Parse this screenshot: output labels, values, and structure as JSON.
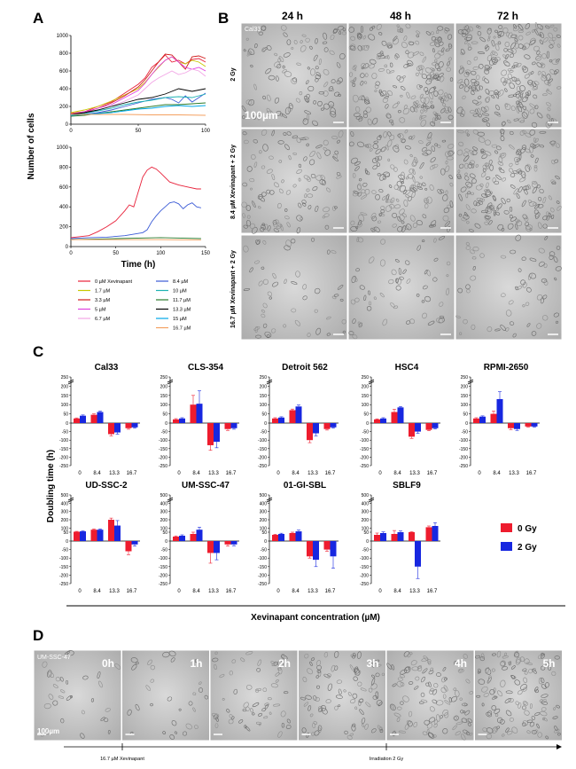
{
  "panels": {
    "A": "A",
    "B": "B",
    "C": "C",
    "D": "D"
  },
  "panelA": {
    "ylabel": "Number of cells",
    "xlabel": "Time (h)",
    "legend": [
      "0 µM Xevinapant",
      "1.7 µM",
      "3.3 µM",
      "5 µM",
      "6.7 µM",
      "8.4 µM",
      "10 µM",
      "11.7 µM",
      "13.3 µM",
      "15 µM",
      "16.7 µM"
    ],
    "colors": [
      "#e8213a",
      "#c8c800",
      "#d01a1a",
      "#e040e0",
      "#f2a6e6",
      "#3b5bd6",
      "#1fb3b3",
      "#2a7a2a",
      "#000000",
      "#00a8e8",
      "#f4a060"
    ]
  },
  "panelB": {
    "times": [
      "24 h",
      "48 h",
      "72 h"
    ],
    "rows": [
      "2 Gy",
      "8.4 µM Xevinapant + 2 Gy",
      "16.7 µM Xevinapant + 2 Gy"
    ],
    "cellline": "Cal33",
    "scale": "100µm"
  },
  "panelC": {
    "ylabel": "Doubling time (h)",
    "xlabel": "Xevinapant concentration (µM)",
    "legend": [
      "0 Gy",
      "2 Gy"
    ],
    "colors": {
      "gy0": "#ee1c2e",
      "gy2": "#1727e0"
    }
  },
  "panelD": {
    "cellline": "UM-SSC-47",
    "scale": "100µm",
    "frames": [
      "0h",
      "1h",
      "2h",
      "3h",
      "4h",
      "5h"
    ],
    "timeline": [
      "16.7 µM Xevinapant",
      "Irradiation 2 Gy"
    ]
  },
  "chart_data": [
    {
      "type": "line",
      "title": "",
      "xlabel": "Time (h)",
      "ylabel": "Number of cells",
      "xlim": [
        0,
        100
      ],
      "ylim": [
        0,
        1000
      ],
      "xticks": [
        0,
        50,
        100
      ],
      "yticks": [
        0,
        200,
        400,
        600,
        800,
        1000
      ],
      "series": [
        {
          "name": "0 µM Xevinapant",
          "x": [
            0,
            10,
            20,
            30,
            40,
            50,
            55,
            60,
            65,
            70,
            75,
            80,
            85,
            90,
            95,
            100
          ],
          "y": [
            120,
            140,
            200,
            250,
            350,
            450,
            520,
            640,
            700,
            780,
            700,
            720,
            680,
            730,
            740,
            700
          ]
        },
        {
          "name": "1.7 µM",
          "x": [
            0,
            10,
            20,
            30,
            40,
            50,
            55,
            60,
            65,
            70,
            75,
            80,
            85,
            90,
            95,
            100
          ],
          "y": [
            130,
            160,
            200,
            260,
            330,
            400,
            470,
            560,
            640,
            720,
            760,
            700,
            680,
            720,
            700,
            650
          ]
        },
        {
          "name": "3.3 µM",
          "x": [
            0,
            10,
            20,
            30,
            40,
            50,
            55,
            60,
            65,
            70,
            75,
            80,
            85,
            90,
            95,
            100
          ],
          "y": [
            100,
            130,
            180,
            240,
            320,
            420,
            500,
            600,
            700,
            790,
            780,
            700,
            620,
            760,
            770,
            740
          ]
        },
        {
          "name": "5 µM",
          "x": [
            0,
            10,
            20,
            30,
            40,
            50,
            55,
            60,
            65,
            70,
            75,
            80,
            85,
            90,
            95,
            100
          ],
          "y": [
            110,
            140,
            180,
            220,
            300,
            380,
            460,
            560,
            650,
            720,
            760,
            700,
            640,
            620,
            640,
            600
          ]
        },
        {
          "name": "6.7 µM",
          "x": [
            0,
            10,
            20,
            30,
            40,
            50,
            55,
            60,
            65,
            70,
            75,
            80,
            85,
            90,
            95,
            100
          ],
          "y": [
            100,
            120,
            160,
            200,
            260,
            330,
            400,
            470,
            520,
            560,
            600,
            560,
            580,
            620,
            600,
            540
          ]
        },
        {
          "name": "8.4 µM",
          "x": [
            0,
            10,
            20,
            30,
            40,
            50,
            60,
            70,
            75,
            80,
            85,
            90,
            95,
            100
          ],
          "y": [
            100,
            110,
            130,
            160,
            200,
            240,
            280,
            300,
            280,
            240,
            320,
            250,
            300,
            350
          ]
        },
        {
          "name": "10 µM",
          "x": [
            0,
            10,
            20,
            30,
            40,
            50,
            60,
            70,
            80,
            90,
            100
          ],
          "y": [
            100,
            120,
            150,
            180,
            220,
            250,
            270,
            300,
            310,
            300,
            340
          ]
        },
        {
          "name": "11.7 µM",
          "x": [
            0,
            10,
            20,
            30,
            40,
            50,
            60,
            70,
            80,
            90,
            100
          ],
          "y": [
            90,
            100,
            120,
            140,
            160,
            180,
            200,
            220,
            220,
            230,
            240
          ]
        },
        {
          "name": "13.3 µM",
          "x": [
            0,
            10,
            20,
            30,
            40,
            50,
            60,
            70,
            80,
            90,
            100
          ],
          "y": [
            110,
            130,
            160,
            200,
            240,
            280,
            300,
            340,
            400,
            370,
            400
          ]
        },
        {
          "name": "15 µM",
          "x": [
            0,
            10,
            20,
            30,
            40,
            50,
            60,
            70,
            80,
            90,
            100
          ],
          "y": [
            100,
            110,
            120,
            130,
            150,
            170,
            180,
            200,
            210,
            200,
            210
          ]
        },
        {
          "name": "16.7 µM",
          "x": [
            0,
            20,
            40,
            60,
            80,
            100
          ],
          "y": [
            110,
            110,
            110,
            105,
            105,
            100
          ]
        }
      ]
    },
    {
      "type": "line",
      "title": "",
      "xlabel": "Time (h)",
      "ylabel": "Number of cells",
      "xlim": [
        0,
        150
      ],
      "ylim": [
        0,
        1000
      ],
      "xticks": [
        0,
        50,
        100,
        150
      ],
      "yticks": [
        0,
        200,
        400,
        600,
        800,
        1000
      ],
      "series": [
        {
          "name": "0 µM Xevinapant",
          "x": [
            0,
            10,
            20,
            30,
            40,
            50,
            60,
            65,
            70,
            75,
            80,
            85,
            90,
            95,
            100,
            110,
            120,
            130,
            140,
            145
          ],
          "y": [
            90,
            100,
            110,
            150,
            200,
            260,
            360,
            420,
            400,
            550,
            700,
            770,
            800,
            780,
            740,
            650,
            620,
            600,
            580,
            580
          ]
        },
        {
          "name": "8.4 µM",
          "x": [
            0,
            20,
            40,
            60,
            80,
            85,
            90,
            95,
            100,
            105,
            110,
            115,
            120,
            125,
            130,
            135,
            140,
            145
          ],
          "y": [
            80,
            90,
            95,
            110,
            140,
            170,
            250,
            310,
            360,
            400,
            440,
            450,
            430,
            380,
            420,
            440,
            400,
            390
          ]
        },
        {
          "name": "11.7 µM",
          "x": [
            0,
            50,
            100,
            145
          ],
          "y": [
            70,
            80,
            90,
            80
          ]
        },
        {
          "name": "16.7 µM",
          "x": [
            0,
            50,
            100,
            145
          ],
          "y": [
            70,
            70,
            70,
            65
          ]
        }
      ]
    },
    {
      "type": "bar",
      "title": "Cal33",
      "categories": [
        "0",
        "8.4",
        "13.3",
        "16.7"
      ],
      "yticks": [
        "250",
        "200",
        "150",
        "100",
        "50",
        "0",
        "-50",
        "-100",
        "-150",
        "-200",
        "-250"
      ],
      "ylim": [
        -250,
        250
      ],
      "series": [
        {
          "name": "0 Gy",
          "values": [
            25,
            45,
            -65,
            -30
          ],
          "errors": [
            3,
            5,
            10,
            6
          ]
        },
        {
          "name": "2 Gy",
          "values": [
            40,
            60,
            -55,
            -25
          ],
          "errors": [
            4,
            5,
            10,
            5
          ]
        }
      ]
    },
    {
      "type": "bar",
      "title": "CLS-354",
      "categories": [
        "0",
        "8.4",
        "13.3",
        "16.7"
      ],
      "yticks": [
        "250",
        "200",
        "150",
        "100",
        "50",
        "0",
        "-50",
        "-100",
        "-150",
        "-200",
        "-250"
      ],
      "ylim": [
        -250,
        250
      ],
      "series": [
        {
          "name": "0 Gy",
          "values": [
            20,
            100,
            -130,
            -35
          ],
          "errors": [
            4,
            50,
            30,
            8
          ]
        },
        {
          "name": "2 Gy",
          "values": [
            25,
            105,
            -110,
            -30
          ],
          "errors": [
            4,
            70,
            35,
            6
          ]
        }
      ]
    },
    {
      "type": "bar",
      "title": "Detroit 562",
      "categories": [
        "0",
        "8.4",
        "13.3",
        "16.7"
      ],
      "yticks": [
        "250",
        "200",
        "150",
        "100",
        "50",
        "0",
        "-50",
        "-100",
        "-150",
        "-200",
        "-250"
      ],
      "ylim": [
        -250,
        250
      ],
      "series": [
        {
          "name": "0 Gy",
          "values": [
            25,
            70,
            -100,
            -35
          ],
          "errors": [
            4,
            6,
            15,
            6
          ]
        },
        {
          "name": "2 Gy",
          "values": [
            30,
            90,
            -60,
            -25
          ],
          "errors": [
            4,
            8,
            15,
            5
          ]
        }
      ]
    },
    {
      "type": "bar",
      "title": "HSC4",
      "categories": [
        "0",
        "8.4",
        "13.3",
        "16.7"
      ],
      "yticks": [
        "250",
        "200",
        "150",
        "100",
        "50",
        "0",
        "-50",
        "-100",
        "-150",
        "-200",
        "-250"
      ],
      "ylim": [
        -250,
        250
      ],
      "series": [
        {
          "name": "0 Gy",
          "values": [
            20,
            60,
            -80,
            -40
          ],
          "errors": [
            3,
            15,
            10,
            5
          ]
        },
        {
          "name": "2 Gy",
          "values": [
            25,
            85,
            -50,
            -30
          ],
          "errors": [
            4,
            5,
            10,
            5
          ]
        }
      ]
    },
    {
      "type": "bar",
      "title": "RPMI-2650",
      "categories": [
        "0",
        "8.4",
        "13.3",
        "16.7"
      ],
      "yticks": [
        "250",
        "200",
        "150",
        "100",
        "50",
        "0",
        "-50",
        "-100",
        "-150",
        "-200",
        "-250"
      ],
      "ylim": [
        -250,
        250
      ],
      "series": [
        {
          "name": "0 Gy",
          "values": [
            25,
            50,
            -30,
            -20
          ],
          "errors": [
            4,
            15,
            8,
            4
          ]
        },
        {
          "name": "2 Gy",
          "values": [
            35,
            130,
            -35,
            -20
          ],
          "errors": [
            4,
            40,
            8,
            4
          ]
        }
      ]
    },
    {
      "type": "bar",
      "title": "UD-SSC-2",
      "categories": [
        "0",
        "8.4",
        "13.3",
        "16.7"
      ],
      "yticks": [
        "500",
        "400",
        "300",
        "200",
        "100",
        "50",
        "0",
        "-50",
        "-100",
        "-150",
        "-200",
        "-250"
      ],
      "ylim": [
        -250,
        500
      ],
      "series": [
        {
          "name": "0 Gy",
          "values": [
            55,
            80,
            200,
            -60
          ],
          "errors": [
            5,
            10,
            20,
            20
          ]
        },
        {
          "name": "2 Gy",
          "values": [
            60,
            80,
            130,
            -20
          ],
          "errors": [
            5,
            10,
            60,
            10
          ]
        }
      ]
    },
    {
      "type": "bar",
      "title": "UM-SSC-47",
      "categories": [
        "0",
        "8.4",
        "13.3",
        "16.7"
      ],
      "yticks": [
        "500",
        "400",
        "300",
        "200",
        "100",
        "50",
        "0",
        "-50",
        "-100",
        "-150",
        "-200",
        "-250"
      ],
      "ylim": [
        -250,
        500
      ],
      "series": [
        {
          "name": "0 Gy",
          "values": [
            25,
            40,
            -70,
            -20
          ],
          "errors": [
            4,
            10,
            60,
            10
          ]
        },
        {
          "name": "2 Gy",
          "values": [
            30,
            80,
            -70,
            -20
          ],
          "errors": [
            5,
            30,
            40,
            8
          ]
        }
      ]
    },
    {
      "type": "bar",
      "title": "01-GI-SBL",
      "categories": [
        "0",
        "8.4",
        "13.3",
        "16.7"
      ],
      "yticks": [
        "500",
        "400",
        "300",
        "200",
        "100",
        "50",
        "0",
        "-50",
        "-100",
        "-150",
        "-200",
        "-250"
      ],
      "ylim": [
        -250,
        500
      ],
      "series": [
        {
          "name": "0 Gy",
          "values": [
            35,
            45,
            -90,
            -50
          ],
          "errors": [
            3,
            5,
            10,
            10
          ]
        },
        {
          "name": "2 Gy",
          "values": [
            40,
            60,
            -110,
            -90
          ],
          "errors": [
            4,
            15,
            40,
            70
          ]
        }
      ]
    },
    {
      "type": "bar",
      "title": "SBLF9",
      "categories": [
        "0",
        "8.4",
        "13.3",
        "16.7"
      ],
      "yticks": [
        "500",
        "400",
        "300",
        "200",
        "100",
        "50",
        "0",
        "-50",
        "-100",
        "-150",
        "-200",
        "-250"
      ],
      "ylim": [
        -250,
        500
      ],
      "series": [
        {
          "name": "0 Gy",
          "values": [
            35,
            40,
            50,
            110
          ],
          "errors": [
            10,
            30,
            5,
            15
          ]
        },
        {
          "name": "2 Gy",
          "values": [
            45,
            50,
            -150,
            125
          ],
          "errors": [
            8,
            15,
            70,
            40
          ]
        }
      ]
    }
  ]
}
